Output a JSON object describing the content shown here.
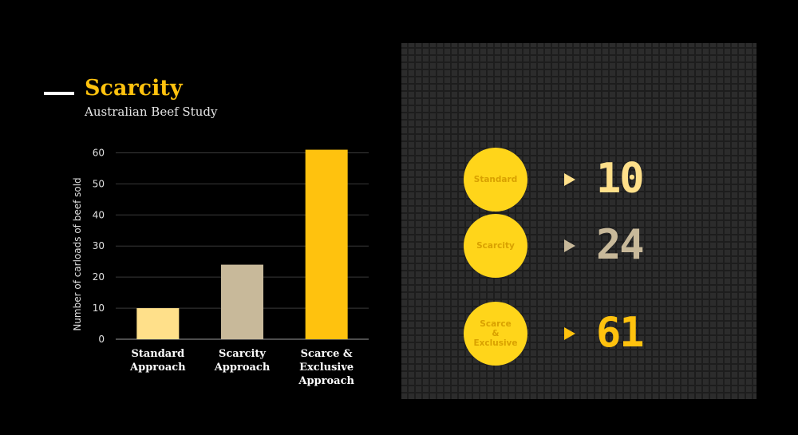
{
  "header": {
    "title": "Scarcity",
    "subtitle": "Australian Beef Study"
  },
  "colors": {
    "title": "#ffc20e",
    "standard": "#ffe08a",
    "scarcity": "#c8b99a",
    "scarce_exclusive": "#ffc20e",
    "circle": "#ffd51a"
  },
  "chart_data": {
    "type": "bar",
    "categories": [
      [
        "Standard",
        "Approach"
      ],
      [
        "Scarcity",
        "Approach"
      ],
      [
        "Scarce &",
        "Exclusive",
        "Approach"
      ]
    ],
    "values": [
      10,
      24,
      61
    ],
    "bar_colors": [
      "#ffe08a",
      "#c8b99a",
      "#ffc20e"
    ],
    "title": "",
    "xlabel": "",
    "ylabel": "Number of carloads of beef sold",
    "ylim": [
      0,
      65
    ],
    "yticks": [
      0,
      10,
      20,
      30,
      40,
      50,
      60
    ],
    "grid": true
  },
  "stats": [
    {
      "label": "Standard",
      "value": "10",
      "value_color": "#ffe08a",
      "arrow_color": "#ffe08a"
    },
    {
      "label": "Scarcity",
      "value": "24",
      "value_color": "#c8b99a",
      "arrow_color": "#c8b99a"
    },
    {
      "label": "Scarce\n&\nExclusive",
      "value": "61",
      "value_color": "#ffc20e",
      "arrow_color": "#ffc20e"
    }
  ]
}
